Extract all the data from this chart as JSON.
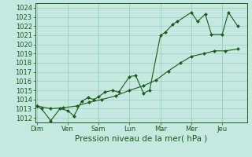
{
  "xlabel": "Pression niveau de la mer( hPa )",
  "background_color": "#c5e8e0",
  "grid_color": "#9ecfbf",
  "line_color": "#1a5c1a",
  "ylim": [
    1011.5,
    1024.5
  ],
  "yticks": [
    1012,
    1013,
    1014,
    1015,
    1016,
    1017,
    1018,
    1019,
    1020,
    1021,
    1022,
    1023,
    1024
  ],
  "x_labels": [
    "Dim",
    "Ven",
    "Sam",
    "Lun",
    "Mar",
    "Mer",
    "Jeu"
  ],
  "x_day_positions": [
    0,
    1,
    2,
    3,
    4,
    5,
    6
  ],
  "xlim": [
    -0.05,
    6.8
  ],
  "line1_x": [
    0.0,
    0.15,
    0.45,
    0.75,
    1.0,
    1.2,
    1.45,
    1.65,
    1.85,
    2.0,
    2.2,
    2.45,
    2.65,
    3.0,
    3.2,
    3.45,
    3.65,
    4.0,
    4.15,
    4.4,
    4.55,
    5.0,
    5.2,
    5.45,
    5.65,
    6.0,
    6.2,
    6.5
  ],
  "line1_y": [
    1013.3,
    1013.0,
    1011.7,
    1013.0,
    1012.8,
    1012.2,
    1013.8,
    1014.2,
    1014.0,
    1014.3,
    1014.8,
    1015.0,
    1014.8,
    1016.5,
    1016.6,
    1014.7,
    1015.0,
    1021.0,
    1021.3,
    1022.2,
    1022.5,
    1023.5,
    1022.5,
    1023.3,
    1021.1,
    1021.1,
    1023.5,
    1022.0
  ],
  "line2_x": [
    0.0,
    0.45,
    0.85,
    1.3,
    1.7,
    2.1,
    2.55,
    3.0,
    3.45,
    3.85,
    4.25,
    4.65,
    5.0,
    5.4,
    5.75,
    6.1,
    6.5
  ],
  "line2_y": [
    1013.3,
    1013.0,
    1013.1,
    1013.3,
    1013.7,
    1014.0,
    1014.4,
    1015.0,
    1015.5,
    1016.1,
    1017.1,
    1018.0,
    1018.7,
    1019.0,
    1019.3,
    1019.3,
    1019.5
  ],
  "xlabel_fontsize": 7.5,
  "tick_fontsize": 6,
  "marker": "D",
  "marker_size": 2.0,
  "linewidth": 0.8
}
